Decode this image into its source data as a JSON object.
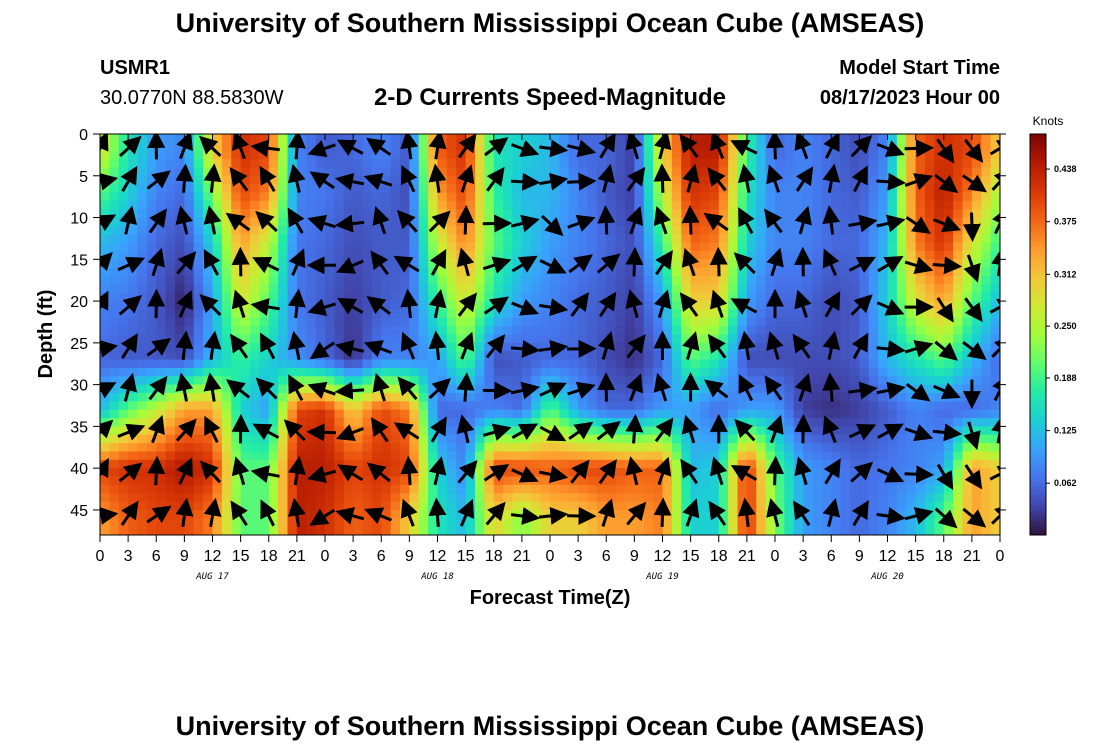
{
  "header": {
    "title": "University of Southern Mississippi Ocean Cube (AMSEAS)",
    "station_id": "USMR1",
    "station_coords": "30.0770N  88.5830W",
    "plot_title": "2-D Currents Speed-Magnitude",
    "model_start_label": "Model Start Time",
    "model_start_value": "08/17/2023 Hour 00"
  },
  "footer": {
    "title": "University of Southern Mississippi Ocean Cube (AMSEAS)"
  },
  "chart_data": {
    "type": "heatmap",
    "title": "2-D Currents Speed-Magnitude",
    "xlabel": "Forecast Time(Z)",
    "ylabel": "Depth (ft)",
    "x_range_hours": [
      0,
      96
    ],
    "x_tick_step_hours": 3,
    "x_tick_labels": [
      "0",
      "3",
      "6",
      "9",
      "12",
      "15",
      "18",
      "21",
      "0",
      "3",
      "6",
      "9",
      "12",
      "15",
      "18",
      "21",
      "0",
      "3",
      "6",
      "9",
      "12",
      "15",
      "18",
      "21",
      "0",
      "3",
      "6",
      "9",
      "12",
      "15",
      "18",
      "21",
      "0"
    ],
    "day_labels": [
      {
        "label": "AUG 17",
        "hour": 12
      },
      {
        "label": "AUG 18",
        "hour": 36
      },
      {
        "label": "AUG 19",
        "hour": 60
      },
      {
        "label": "AUG 20",
        "hour": 84
      }
    ],
    "y_range_ft": [
      0,
      48
    ],
    "y_ticks": [
      0,
      5,
      10,
      15,
      20,
      25,
      30,
      35,
      40,
      45
    ],
    "y_inverted": true,
    "colorbar": {
      "unit": "Knots",
      "range": [
        0,
        0.48
      ],
      "ticks": [
        "0.062",
        "0.125",
        "0.188",
        "0.250",
        "0.312",
        "0.375",
        "0.438"
      ],
      "tick_values": [
        0.062,
        0.125,
        0.188,
        0.25,
        0.312,
        0.375,
        0.438
      ]
    },
    "colormap": [
      "#30123b",
      "#4145ab",
      "#4675ed",
      "#39a2fc",
      "#1bcfd4",
      "#24eca6",
      "#61fc6c",
      "#a4fc3b",
      "#d1e834",
      "#f3c63a",
      "#fe9b2d",
      "#f36315",
      "#d93806",
      "#b11901",
      "#7a0402"
    ],
    "speed_depth_levels_ft": [
      2,
      7,
      13,
      20,
      27,
      33,
      40,
      46
    ],
    "speed_keyframes": [
      {
        "hour": 0,
        "speeds": [
          0.28,
          0.2,
          0.12,
          0.08,
          0.06,
          0.12,
          0.4,
          0.34
        ]
      },
      {
        "hour": 3,
        "speeds": [
          0.16,
          0.14,
          0.1,
          0.07,
          0.05,
          0.2,
          0.42,
          0.38
        ]
      },
      {
        "hour": 6,
        "speeds": [
          0.1,
          0.08,
          0.06,
          0.05,
          0.05,
          0.26,
          0.42,
          0.4
        ]
      },
      {
        "hour": 9,
        "speeds": [
          0.08,
          0.06,
          0.04,
          0.01,
          0.04,
          0.34,
          0.45,
          0.4
        ]
      },
      {
        "hour": 12,
        "speeds": [
          0.3,
          0.22,
          0.14,
          0.1,
          0.12,
          0.34,
          0.42,
          0.36
        ]
      },
      {
        "hour": 15,
        "speeds": [
          0.42,
          0.4,
          0.34,
          0.28,
          0.18,
          0.14,
          0.2,
          0.2
        ]
      },
      {
        "hour": 18,
        "speeds": [
          0.4,
          0.36,
          0.26,
          0.2,
          0.14,
          0.1,
          0.2,
          0.2
        ]
      },
      {
        "hour": 21,
        "speeds": [
          0.08,
          0.08,
          0.07,
          0.07,
          0.09,
          0.4,
          0.44,
          0.44
        ]
      },
      {
        "hour": 24,
        "speeds": [
          0.05,
          0.07,
          0.06,
          0.05,
          0.06,
          0.42,
          0.44,
          0.42
        ]
      },
      {
        "hour": 27,
        "speeds": [
          0.06,
          0.05,
          0.04,
          0.03,
          0.02,
          0.3,
          0.4,
          0.38
        ]
      },
      {
        "hour": 30,
        "speeds": [
          0.08,
          0.06,
          0.05,
          0.05,
          0.08,
          0.4,
          0.42,
          0.4
        ]
      },
      {
        "hour": 33,
        "speeds": [
          0.05,
          0.04,
          0.05,
          0.06,
          0.08,
          0.36,
          0.4,
          0.3
        ]
      },
      {
        "hour": 36,
        "speeds": [
          0.38,
          0.34,
          0.26,
          0.18,
          0.1,
          0.06,
          0.14,
          0.16
        ]
      },
      {
        "hour": 39,
        "speeds": [
          0.42,
          0.4,
          0.36,
          0.28,
          0.2,
          0.06,
          0.08,
          0.12
        ]
      },
      {
        "hour": 42,
        "speeds": [
          0.16,
          0.18,
          0.2,
          0.16,
          0.04,
          0.08,
          0.4,
          0.3
        ]
      },
      {
        "hour": 45,
        "speeds": [
          0.14,
          0.12,
          0.14,
          0.1,
          0.05,
          0.06,
          0.4,
          0.22
        ]
      },
      {
        "hour": 48,
        "speeds": [
          0.12,
          0.12,
          0.1,
          0.08,
          0.06,
          0.2,
          0.38,
          0.3
        ]
      },
      {
        "hour": 51,
        "speeds": [
          0.06,
          0.08,
          0.08,
          0.06,
          0.06,
          0.1,
          0.4,
          0.3
        ]
      },
      {
        "hour": 54,
        "speeds": [
          0.06,
          0.05,
          0.06,
          0.05,
          0.04,
          0.06,
          0.4,
          0.34
        ]
      },
      {
        "hour": 57,
        "speeds": [
          0.03,
          0.03,
          0.04,
          0.03,
          0.02,
          0.06,
          0.38,
          0.34
        ]
      },
      {
        "hour": 60,
        "speeds": [
          0.3,
          0.26,
          0.18,
          0.1,
          0.06,
          0.1,
          0.38,
          0.36
        ]
      },
      {
        "hour": 63,
        "speeds": [
          0.44,
          0.42,
          0.38,
          0.3,
          0.2,
          0.1,
          0.12,
          0.14
        ]
      },
      {
        "hour": 66,
        "speeds": [
          0.44,
          0.4,
          0.36,
          0.3,
          0.16,
          0.06,
          0.14,
          0.14
        ]
      },
      {
        "hour": 69,
        "speeds": [
          0.18,
          0.16,
          0.14,
          0.1,
          0.04,
          0.1,
          0.42,
          0.42
        ]
      },
      {
        "hour": 72,
        "speeds": [
          0.06,
          0.08,
          0.08,
          0.06,
          0.04,
          0.1,
          0.2,
          0.22
        ]
      },
      {
        "hour": 75,
        "speeds": [
          0.08,
          0.08,
          0.08,
          0.06,
          0.04,
          0.03,
          0.1,
          0.1
        ]
      },
      {
        "hour": 78,
        "speeds": [
          0.06,
          0.06,
          0.06,
          0.04,
          0.04,
          0.02,
          0.08,
          0.08
        ]
      },
      {
        "hour": 81,
        "speeds": [
          0.04,
          0.05,
          0.06,
          0.05,
          0.05,
          0.03,
          0.06,
          0.06
        ]
      },
      {
        "hour": 84,
        "speeds": [
          0.08,
          0.1,
          0.12,
          0.14,
          0.12,
          0.05,
          0.07,
          0.08
        ]
      },
      {
        "hour": 87,
        "speeds": [
          0.38,
          0.38,
          0.36,
          0.28,
          0.16,
          0.08,
          0.08,
          0.12
        ]
      },
      {
        "hour": 90,
        "speeds": [
          0.42,
          0.44,
          0.42,
          0.34,
          0.2,
          0.06,
          0.1,
          0.2
        ]
      },
      {
        "hour": 93,
        "speeds": [
          0.4,
          0.36,
          0.28,
          0.2,
          0.12,
          0.06,
          0.34,
          0.34
        ]
      },
      {
        "hour": 96,
        "speeds": [
          0.3,
          0.24,
          0.18,
          0.12,
          0.06,
          0.08,
          0.3,
          0.3
        ]
      }
    ],
    "vector_depths_ft": [
      1,
      5,
      10,
      15,
      20,
      25,
      30,
      35,
      40,
      45
    ],
    "vector_hours": [
      0,
      3,
      6,
      9,
      12,
      15,
      18,
      21,
      24,
      27,
      30,
      33,
      36,
      39,
      42,
      45,
      48,
      51,
      54,
      57,
      60,
      63,
      66,
      69,
      72,
      75,
      78,
      81,
      84,
      87,
      90,
      93,
      96
    ],
    "vector_direction_deg_by_hour": [
      60,
      45,
      30,
      15,
      340,
      330,
      300,
      350,
      270,
      280,
      320,
      330,
      20,
      10,
      60,
      80,
      100,
      70,
      30,
      15,
      10,
      350,
      330,
      320,
      345,
      0,
      10,
      60,
      90,
      100,
      120,
      150,
      30
    ],
    "vector_direction_note": "degrees clockwise from up; per-depth deviation applied in rendering"
  }
}
